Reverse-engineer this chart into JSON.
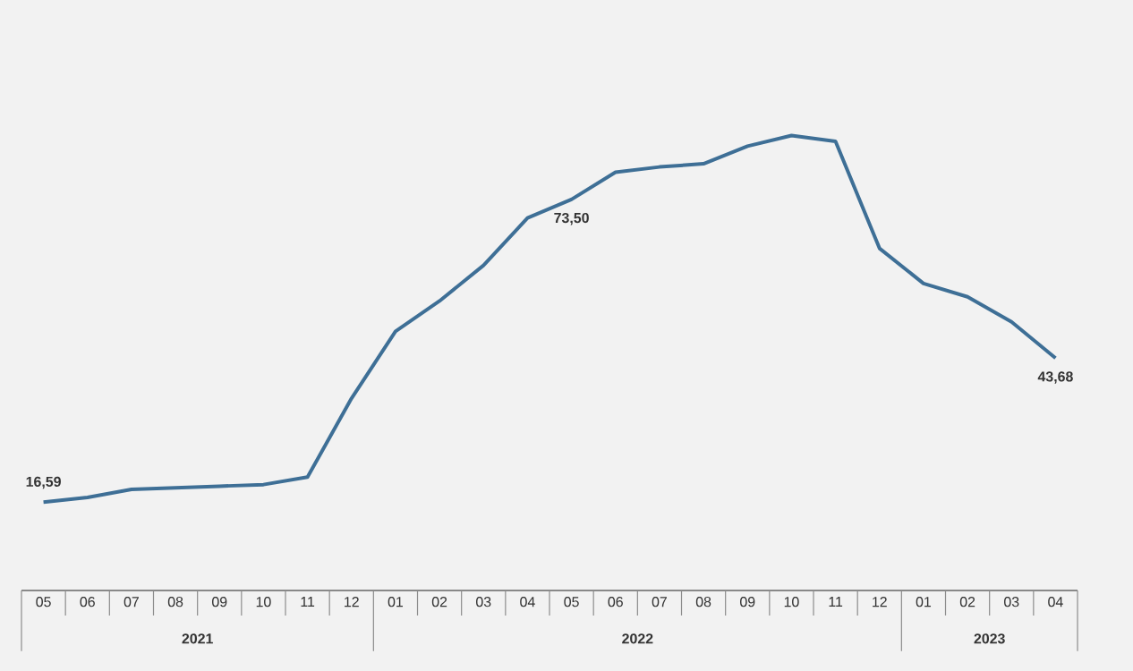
{
  "chart_data": {
    "type": "line",
    "tick_labels": "x",
    "x": [
      "2021-05",
      "2021-06",
      "2021-07",
      "2021-08",
      "2021-09",
      "2021-10",
      "2021-11",
      "2021-12",
      "2022-01",
      "2022-02",
      "2022-03",
      "2022-04",
      "2022-05",
      "2022-06",
      "2022-07",
      "2022-08",
      "2022-09",
      "2022-10",
      "2022-11",
      "2022-12",
      "2023-01",
      "2023-02",
      "2023-03",
      "2023-04"
    ],
    "xlim": [
      "2021-04-16",
      "2023-04-16"
    ],
    "xticks": [
      {
        "value": "2021-05",
        "label": "05"
      },
      {
        "value": "2021-06",
        "label": "06"
      },
      {
        "value": "2021-07",
        "label": "07"
      },
      {
        "value": "2021-08",
        "label": "08"
      },
      {
        "value": "2021-09",
        "label": "09"
      },
      {
        "value": "2021-10",
        "label": "10"
      },
      {
        "value": "2021-11",
        "label": "11"
      },
      {
        "value": "2021-12",
        "label": "12"
      },
      {
        "value": "2022-01",
        "label": "01"
      },
      {
        "value": "2022-02",
        "label": "02"
      },
      {
        "value": "2022-03",
        "label": "03"
      },
      {
        "value": "2022-04",
        "label": "04"
      },
      {
        "value": "2022-05",
        "label": "05"
      },
      {
        "value": "2022-06",
        "label": "06"
      },
      {
        "value": "2022-07",
        "label": "07"
      },
      {
        "value": "2022-08",
        "label": "08"
      },
      {
        "value": "2022-09",
        "label": "09"
      },
      {
        "value": "2022-10",
        "label": "10"
      },
      {
        "value": "2022-11",
        "label": "11"
      },
      {
        "value": "2022-12",
        "label": "12"
      },
      {
        "value": "2023-01",
        "label": "01"
      },
      {
        "value": "2023-02",
        "label": "02"
      },
      {
        "value": "2023-03",
        "label": "03"
      },
      {
        "value": "2023-04",
        "label": "04"
      }
    ],
    "series": [
      {
        "color": "#3e6f96",
        "values": [
          16.59,
          17.5,
          19,
          19.3,
          19.6,
          19.9,
          21.3,
          36.1,
          48.7,
          54.4,
          61.1,
          70,
          73.5,
          78.6,
          79.6,
          80.2,
          83.5,
          85.5,
          84.4,
          64.3,
          57.7,
          55.2,
          50.5,
          43.68
        ],
        "value_labels": [
          "16,59",
          null,
          null,
          null,
          null,
          null,
          null,
          null,
          null,
          null,
          null,
          null,
          "73,50",
          null,
          null,
          null,
          null,
          null,
          null,
          null,
          null,
          null,
          null,
          "43,68"
        ]
      }
    ],
    "annotations": [
      "2021",
      "2022",
      "2023"
    ],
    "grid": false
  }
}
